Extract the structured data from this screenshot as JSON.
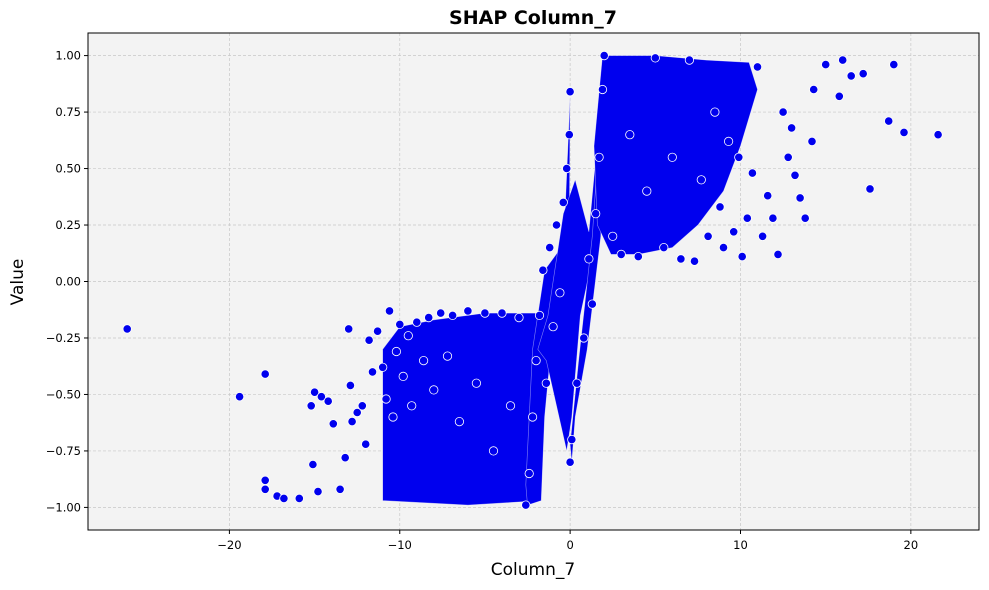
{
  "chart_data": {
    "type": "scatter",
    "title": "SHAP Column_7",
    "xlabel": "Column_7",
    "ylabel": "Value",
    "xlim": [
      -28.3,
      24.0
    ],
    "ylim": [
      -1.1,
      1.1
    ],
    "xticks": [
      -20,
      -10,
      0,
      10,
      20
    ],
    "xtick_labels": [
      "−20",
      "−10",
      "0",
      "10",
      "20"
    ],
    "yticks": [
      -1.0,
      -0.75,
      -0.5,
      -0.25,
      0.0,
      0.25,
      0.5,
      0.75,
      1.0
    ],
    "ytick_labels": [
      "−1.00",
      "−0.75",
      "−0.50",
      "−0.25",
      "0.00",
      "0.25",
      "0.50",
      "0.75",
      "1.00"
    ],
    "grid": true,
    "legend": "none",
    "colors": {
      "marker": "#0000ee",
      "marker_edge": "#ffffff",
      "plot_bg": "#f3f3f3",
      "grid": "#c8c8c8"
    },
    "series": [
      {
        "points": [
          [
            -26.0,
            -0.21
          ],
          [
            -19.4,
            -0.51
          ],
          [
            -17.9,
            -0.41
          ],
          [
            -17.9,
            -0.88
          ],
          [
            -17.9,
            -0.92
          ],
          [
            -17.2,
            -0.95
          ],
          [
            -16.8,
            -0.96
          ],
          [
            -15.9,
            -0.96
          ],
          [
            -15.2,
            -0.55
          ],
          [
            -15.1,
            -0.81
          ],
          [
            -15.0,
            -0.49
          ],
          [
            -14.8,
            -0.93
          ],
          [
            -14.6,
            -0.51
          ],
          [
            -14.2,
            -0.53
          ],
          [
            -13.9,
            -0.63
          ],
          [
            -13.5,
            -0.92
          ],
          [
            -13.2,
            -0.78
          ],
          [
            -13.0,
            -0.21
          ],
          [
            -12.9,
            -0.46
          ],
          [
            -12.8,
            -0.62
          ],
          [
            -12.5,
            -0.58
          ],
          [
            -12.2,
            -0.55
          ],
          [
            -12.0,
            -0.72
          ],
          [
            -11.8,
            -0.26
          ],
          [
            -11.6,
            -0.4
          ],
          [
            -11.3,
            -0.22
          ],
          [
            -11.0,
            -0.38
          ],
          [
            -10.8,
            -0.52
          ],
          [
            -10.6,
            -0.13
          ],
          [
            -10.4,
            -0.6
          ],
          [
            -10.2,
            -0.31
          ],
          [
            -10.0,
            -0.19
          ],
          [
            -9.8,
            -0.42
          ],
          [
            -9.5,
            -0.24
          ],
          [
            -9.3,
            -0.55
          ],
          [
            -9.0,
            -0.18
          ],
          [
            -8.6,
            -0.35
          ],
          [
            -8.3,
            -0.16
          ],
          [
            -8.0,
            -0.48
          ],
          [
            -7.6,
            -0.14
          ],
          [
            -7.2,
            -0.33
          ],
          [
            -6.9,
            -0.15
          ],
          [
            -6.5,
            -0.62
          ],
          [
            -6.0,
            -0.13
          ],
          [
            -5.5,
            -0.45
          ],
          [
            -5.0,
            -0.14
          ],
          [
            -4.5,
            -0.75
          ],
          [
            -4.0,
            -0.14
          ],
          [
            -3.5,
            -0.55
          ],
          [
            -3.0,
            -0.16
          ],
          [
            -2.6,
            -0.99
          ],
          [
            -2.4,
            -0.85
          ],
          [
            -2.2,
            -0.6
          ],
          [
            -2.0,
            -0.35
          ],
          [
            -1.8,
            -0.15
          ],
          [
            -1.6,
            0.05
          ],
          [
            -1.4,
            -0.45
          ],
          [
            -1.2,
            0.15
          ],
          [
            -1.0,
            -0.2
          ],
          [
            -0.8,
            0.25
          ],
          [
            -0.6,
            -0.05
          ],
          [
            -0.4,
            0.35
          ],
          [
            -0.2,
            0.5
          ],
          [
            -0.05,
            0.65
          ],
          [
            0.0,
            0.84
          ],
          [
            0.0,
            -0.8
          ],
          [
            0.1,
            -0.7
          ],
          [
            0.4,
            -0.45
          ],
          [
            0.8,
            -0.25
          ],
          [
            1.1,
            0.1
          ],
          [
            1.3,
            -0.1
          ],
          [
            1.5,
            0.3
          ],
          [
            1.7,
            0.55
          ],
          [
            1.9,
            0.85
          ],
          [
            2.0,
            1.0
          ],
          [
            2.5,
            0.2
          ],
          [
            3.0,
            0.12
          ],
          [
            3.5,
            0.65
          ],
          [
            4.0,
            0.11
          ],
          [
            4.5,
            0.4
          ],
          [
            5.0,
            0.99
          ],
          [
            5.5,
            0.15
          ],
          [
            6.0,
            0.55
          ],
          [
            6.5,
            0.1
          ],
          [
            7.0,
            0.98
          ],
          [
            7.3,
            0.09
          ],
          [
            7.7,
            0.45
          ],
          [
            8.1,
            0.2
          ],
          [
            8.5,
            0.75
          ],
          [
            8.8,
            0.33
          ],
          [
            9.0,
            0.15
          ],
          [
            9.3,
            0.62
          ],
          [
            9.6,
            0.22
          ],
          [
            9.9,
            0.55
          ],
          [
            10.1,
            0.11
          ],
          [
            10.4,
            0.28
          ],
          [
            10.7,
            0.48
          ],
          [
            11.0,
            0.95
          ],
          [
            11.3,
            0.2
          ],
          [
            11.6,
            0.38
          ],
          [
            11.9,
            0.28
          ],
          [
            12.2,
            0.12
          ],
          [
            12.5,
            0.75
          ],
          [
            12.8,
            0.55
          ],
          [
            13.0,
            0.68
          ],
          [
            13.2,
            0.47
          ],
          [
            13.5,
            0.37
          ],
          [
            13.8,
            0.28
          ],
          [
            14.2,
            0.62
          ],
          [
            14.3,
            0.85
          ],
          [
            15.0,
            0.96
          ],
          [
            15.8,
            0.82
          ],
          [
            16.0,
            0.98
          ],
          [
            16.5,
            0.91
          ],
          [
            17.2,
            0.92
          ],
          [
            17.6,
            0.41
          ],
          [
            18.7,
            0.71
          ],
          [
            19.0,
            0.96
          ],
          [
            19.6,
            0.66
          ],
          [
            21.6,
            0.65
          ]
        ]
      }
    ]
  }
}
